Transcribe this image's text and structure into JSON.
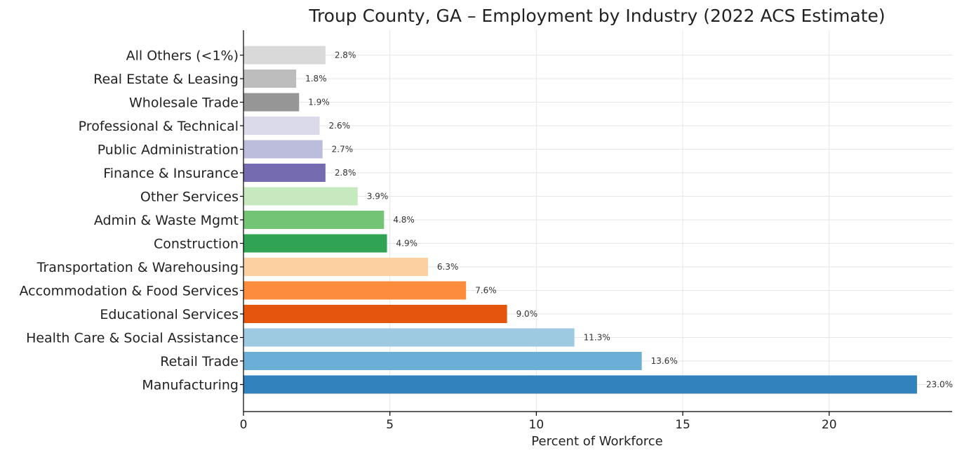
{
  "chart_data": {
    "type": "bar",
    "orientation": "horizontal",
    "title": "Troup County, GA – Employment by Industry (2022 ACS Estimate)",
    "xlabel": "Percent of Workforce",
    "ylabel": "",
    "xlim": [
      0,
      24.2
    ],
    "xticks": [
      0,
      5,
      10,
      15,
      20
    ],
    "grid": true,
    "value_suffix": "%",
    "categories": [
      "Manufacturing",
      "Retail Trade",
      "Health Care & Social Assistance",
      "Educational Services",
      "Accommodation & Food Services",
      "Transportation & Warehousing",
      "Construction",
      "Admin & Waste Mgmt",
      "Other Services",
      "Finance & Insurance",
      "Public Administration",
      "Professional & Technical",
      "Wholesale Trade",
      "Real Estate & Leasing",
      "All Others (<1%)"
    ],
    "values": [
      23.0,
      13.6,
      11.3,
      9.0,
      7.6,
      6.3,
      4.9,
      4.8,
      3.9,
      2.8,
      2.7,
      2.6,
      1.9,
      1.8,
      2.8
    ],
    "colors": [
      "#3182bd",
      "#6baed6",
      "#9ecae1",
      "#e6550d",
      "#fd8d3c",
      "#fdd0a2",
      "#31a354",
      "#74c476",
      "#c7e9c0",
      "#756bb1",
      "#bcbddc",
      "#dadaeb",
      "#969696",
      "#bdbdbd",
      "#d9d9d9"
    ]
  }
}
